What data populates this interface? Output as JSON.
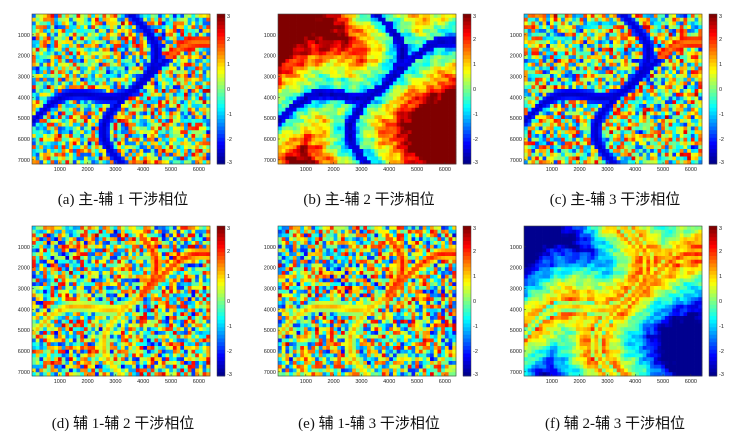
{
  "colors": {
    "background": "#ffffff",
    "colormap_jet": [
      "#00008f",
      "#0000ff",
      "#0080ff",
      "#00ffff",
      "#80ff80",
      "#ffff00",
      "#ff8000",
      "#ff0000",
      "#800000"
    ],
    "frame": "#444444"
  },
  "figure": {
    "panels": [
      {
        "id": "a",
        "caption": "(a) 主-辅 1 干涉相位",
        "chart_data": {
          "type": "heatmap",
          "xticks": [
            1000,
            2000,
            3000,
            4000,
            5000,
            6000
          ],
          "yticks": [
            1000,
            2000,
            3000,
            4000,
            5000,
            6000,
            7000
          ],
          "xlim": [
            0,
            6400
          ],
          "ylim": [
            7200,
            0
          ],
          "colorbar": {
            "ticks": [
              3,
              2,
              1,
              0,
              -1,
              -2,
              -3
            ],
            "range": [
              -3,
              3
            ],
            "colormap": "jet"
          },
          "pattern": "noisy"
        }
      },
      {
        "id": "b",
        "caption": "(b) 主-辅 2 干涉相位",
        "chart_data": {
          "type": "heatmap",
          "xticks": [
            1000,
            2000,
            3000,
            4000,
            5000,
            6000
          ],
          "yticks": [
            1000,
            2000,
            3000,
            4000,
            5000,
            6000,
            7000
          ],
          "xlim": [
            0,
            6400
          ],
          "ylim": [
            7200,
            0
          ],
          "colorbar": {
            "ticks": [
              3,
              2,
              1,
              0,
              -1,
              -2,
              -3
            ],
            "range": [
              -3,
              3
            ],
            "colormap": "jet"
          },
          "pattern": "smooth-low"
        }
      },
      {
        "id": "c",
        "caption": "(c) 主-辅 3 干涉相位",
        "chart_data": {
          "type": "heatmap",
          "xticks": [
            1000,
            2000,
            3000,
            4000,
            5000,
            6000
          ],
          "yticks": [
            1000,
            2000,
            3000,
            4000,
            5000,
            6000,
            7000
          ],
          "xlim": [
            0,
            6400
          ],
          "ylim": [
            7200,
            0
          ],
          "colorbar": {
            "ticks": [
              3,
              2,
              1,
              0,
              -1,
              -2,
              -3
            ],
            "range": [
              -3,
              3
            ],
            "colormap": "jet"
          },
          "pattern": "noisy"
        }
      },
      {
        "id": "d",
        "caption": "(d) 辅 1-辅 2 干涉相位",
        "chart_data": {
          "type": "heatmap",
          "xticks": [
            1000,
            2000,
            3000,
            4000,
            5000,
            6000
          ],
          "yticks": [
            1000,
            2000,
            3000,
            4000,
            5000,
            6000,
            7000
          ],
          "xlim": [
            0,
            6400
          ],
          "ylim": [
            7200,
            0
          ],
          "colorbar": {
            "ticks": [
              3,
              2,
              1,
              0,
              -1,
              -2,
              -3
            ],
            "range": [
              -3,
              3
            ],
            "colormap": "jet"
          },
          "pattern": "noisy-bright"
        }
      },
      {
        "id": "e",
        "caption": "(e) 辅 1-辅 3 干涉相位",
        "chart_data": {
          "type": "heatmap",
          "xticks": [
            1000,
            2000,
            3000,
            4000,
            5000,
            6000
          ],
          "yticks": [
            1000,
            2000,
            3000,
            4000,
            5000,
            6000,
            7000
          ],
          "xlim": [
            0,
            6400
          ],
          "ylim": [
            7200,
            0
          ],
          "colorbar": {
            "ticks": [
              3,
              2,
              1,
              0,
              -1,
              -2,
              -3
            ],
            "range": [
              -3,
              3
            ],
            "colormap": "jet"
          },
          "pattern": "noisy-bright"
        }
      },
      {
        "id": "f",
        "caption": "(f) 辅 2-辅 3 干涉相位",
        "chart_data": {
          "type": "heatmap",
          "xticks": [
            1000,
            2000,
            3000,
            4000,
            5000,
            6000
          ],
          "yticks": [
            1000,
            2000,
            3000,
            4000,
            5000,
            6000,
            7000
          ],
          "xlim": [
            0,
            6400
          ],
          "ylim": [
            7200,
            0
          ],
          "colorbar": {
            "ticks": [
              3,
              2,
              1,
              0,
              -1,
              -2,
              -3
            ],
            "range": [
              -3,
              3
            ],
            "colormap": "jet"
          },
          "pattern": "smooth-high"
        }
      }
    ]
  }
}
